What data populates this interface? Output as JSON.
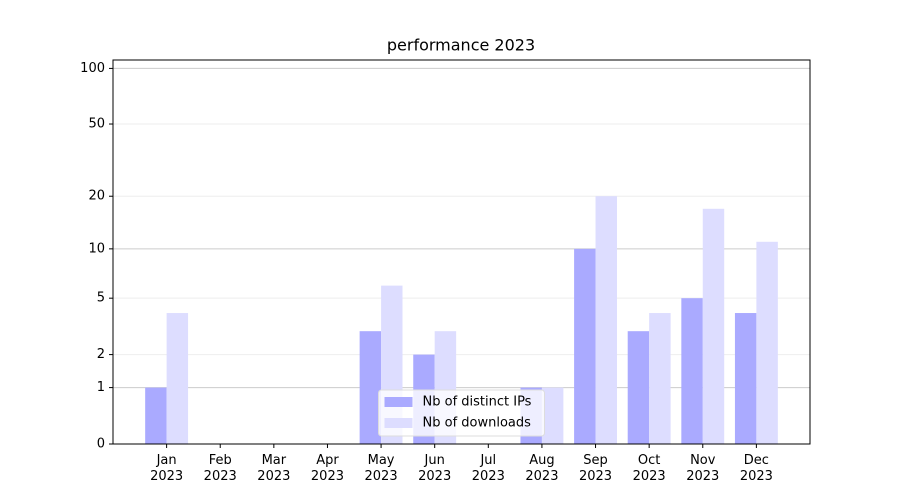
{
  "chart_data": {
    "type": "bar",
    "title": "performance 2023",
    "categories": [
      "Jan\n2023",
      "Feb\n2023",
      "Mar\n2023",
      "Apr\n2023",
      "May\n2023",
      "Jun\n2023",
      "Jul\n2023",
      "Aug\n2023",
      "Sep\n2023",
      "Oct\n2023",
      "Nov\n2023",
      "Dec\n2023"
    ],
    "series": [
      {
        "name": "Nb of distinct IPs",
        "color": "#aaaaff",
        "values": [
          1,
          0,
          0,
          0,
          3,
          2,
          0,
          1,
          10,
          3,
          5,
          4
        ]
      },
      {
        "name": "Nb of downloads",
        "color": "#ddddff",
        "values": [
          4,
          0,
          0,
          0,
          6,
          3,
          0,
          1,
          20,
          4,
          17,
          11
        ]
      }
    ],
    "yscale": "log1p",
    "ylim": [
      0,
      111
    ],
    "yticks": [
      0,
      1,
      2,
      5,
      10,
      20,
      50,
      100
    ],
    "grid": true,
    "legend": "lower center"
  }
}
